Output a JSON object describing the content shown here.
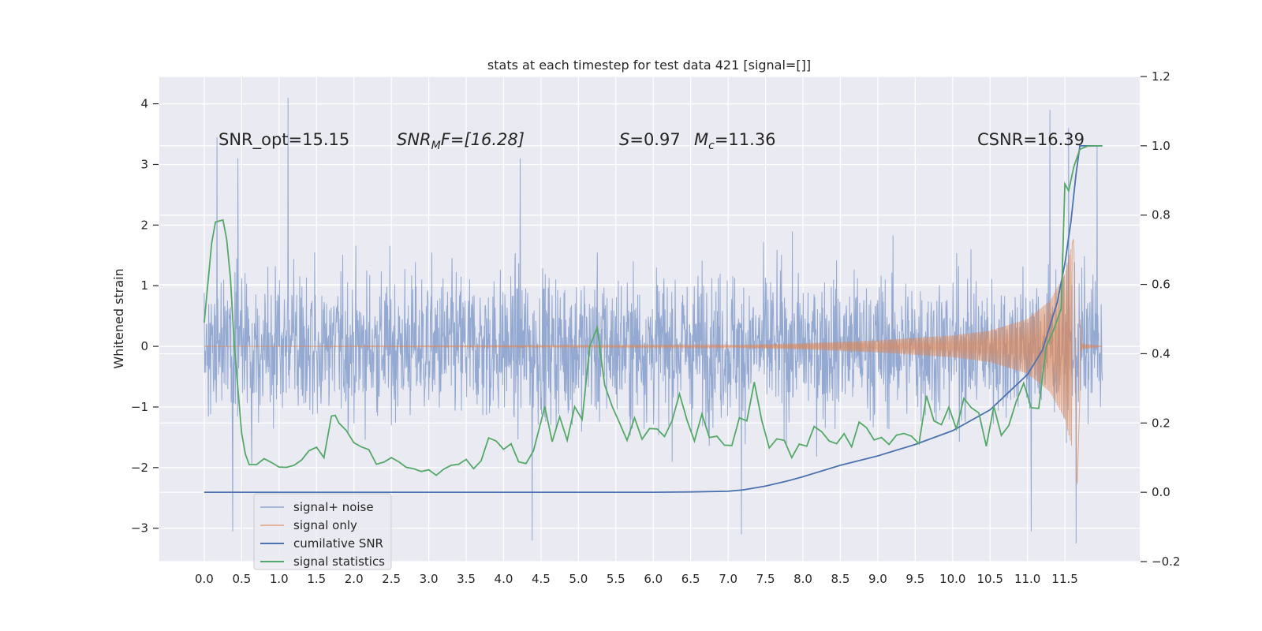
{
  "chart_data": {
    "type": "line",
    "title": "stats at each timestep for test data 421 [signal=[]]",
    "xlabel": "",
    "ylabel": "Whitened strain",
    "y2label": "",
    "xlim": [
      -0.6,
      12.5
    ],
    "ylim": [
      -3.55,
      4.45
    ],
    "y2lim": [
      -0.2,
      1.2
    ],
    "x_ticks": [
      0.0,
      0.5,
      1.0,
      1.5,
      2.0,
      2.5,
      3.0,
      3.5,
      4.0,
      4.5,
      5.0,
      5.5,
      6.0,
      6.5,
      7.0,
      7.5,
      8.0,
      8.5,
      9.0,
      9.5,
      10.0,
      10.5,
      11.0,
      11.5
    ],
    "x_tick_labels": [
      "0.0",
      "0.5",
      "1.0",
      "1.5",
      "2.0",
      "2.5",
      "3.0",
      "3.5",
      "4.0",
      "4.5",
      "5.0",
      "5.5",
      "6.0",
      "6.5",
      "7.0",
      "7.5",
      "8.0",
      "8.5",
      "9.0",
      "9.5",
      "10.0",
      "10.5",
      "11.0",
      "11.5"
    ],
    "y_ticks": [
      4,
      3,
      2,
      1,
      0,
      -1,
      -2,
      -3
    ],
    "y_tick_labels": [
      "4",
      "3",
      "2",
      "1",
      "0",
      "−1",
      "−2",
      "−3"
    ],
    "y2_ticks": [
      1.2,
      1.0,
      0.8,
      0.6,
      0.4,
      0.2,
      0.0,
      -0.2
    ],
    "y2_tick_labels": [
      "1.2",
      "1.0",
      "0.8",
      "0.6",
      "0.4",
      "0.2",
      "0.0",
      "−0.2"
    ],
    "grid": true,
    "legend_position": "lower-left",
    "annotations": {
      "snr_opt": "SNR_opt=15.15",
      "snr_mf_main": "SNR",
      "snr_mf_sub": "M",
      "snr_mf_rest": "F=[16.28]",
      "s_main": "S",
      "s_rest": "=0.97",
      "mc_main": "M",
      "mc_sub": "c",
      "mc_rest": "=11.36",
      "csnr": "CSNR=16.39"
    },
    "series": [
      {
        "name": "signal+ noise",
        "axis": "left",
        "color": "#8fa5cf",
        "style": "dense-noise",
        "x_range": [
          0.0,
          12.0
        ],
        "envelope": [
          -2.0,
          2.0
        ],
        "peaks": [
          [
            0.17,
            3.45
          ],
          [
            0.45,
            3.1
          ],
          [
            1.12,
            4.1
          ],
          [
            4.22,
            3.1
          ],
          [
            11.3,
            3.9
          ],
          [
            11.55,
            3.6
          ],
          [
            11.93,
            3.3
          ],
          [
            0.38,
            -3.05
          ],
          [
            4.38,
            -3.2
          ],
          [
            7.18,
            -3.1
          ],
          [
            11.05,
            -3.05
          ],
          [
            11.65,
            -3.25
          ]
        ]
      },
      {
        "name": "signal only",
        "axis": "left",
        "color": "#dd8452",
        "style": "chirp",
        "x_range": [
          0.0,
          12.0
        ],
        "points": [
          [
            0.0,
            0.0
          ],
          [
            7.0,
            0.02
          ],
          [
            8.0,
            0.05
          ],
          [
            9.0,
            0.1
          ],
          [
            10.0,
            0.18
          ],
          [
            10.5,
            0.26
          ],
          [
            11.0,
            0.45
          ],
          [
            11.3,
            0.75
          ],
          [
            11.5,
            1.2
          ],
          [
            11.62,
            1.8
          ],
          [
            11.66,
            -2.5
          ],
          [
            11.72,
            0.05
          ],
          [
            12.0,
            0.0
          ]
        ]
      },
      {
        "name": "cumilative SNR",
        "axis": "right",
        "color": "#4c72b0",
        "points": [
          [
            0.0,
            0.0
          ],
          [
            5.0,
            0.0
          ],
          [
            6.0,
            0.0
          ],
          [
            6.5,
            0.001
          ],
          [
            7.0,
            0.003
          ],
          [
            7.2,
            0.007
          ],
          [
            7.5,
            0.018
          ],
          [
            7.8,
            0.033
          ],
          [
            8.0,
            0.045
          ],
          [
            8.5,
            0.078
          ],
          [
            9.0,
            0.105
          ],
          [
            9.5,
            0.138
          ],
          [
            10.0,
            0.178
          ],
          [
            10.5,
            0.238
          ],
          [
            11.0,
            0.34
          ],
          [
            11.2,
            0.41
          ],
          [
            11.4,
            0.55
          ],
          [
            11.5,
            0.66
          ],
          [
            11.58,
            0.78
          ],
          [
            11.65,
            0.92
          ],
          [
            11.7,
            1.0
          ],
          [
            12.0,
            1.0
          ]
        ]
      },
      {
        "name": "signal statistics",
        "axis": "right",
        "color": "#55a868",
        "points": [
          [
            0.0,
            0.49
          ],
          [
            0.1,
            0.72
          ],
          [
            0.15,
            0.78
          ],
          [
            0.25,
            0.786
          ],
          [
            0.3,
            0.73
          ],
          [
            0.35,
            0.62
          ],
          [
            0.4,
            0.43
          ],
          [
            0.45,
            0.3
          ],
          [
            0.5,
            0.17
          ],
          [
            0.55,
            0.11
          ],
          [
            0.6,
            0.08
          ],
          [
            0.7,
            0.08
          ],
          [
            0.8,
            0.097
          ],
          [
            0.9,
            0.086
          ],
          [
            1.0,
            0.073
          ],
          [
            1.1,
            0.072
          ],
          [
            1.2,
            0.078
          ],
          [
            1.3,
            0.093
          ],
          [
            1.4,
            0.12
          ],
          [
            1.5,
            0.13
          ],
          [
            1.6,
            0.1
          ],
          [
            1.7,
            0.22
          ],
          [
            1.75,
            0.222
          ],
          [
            1.8,
            0.2
          ],
          [
            1.9,
            0.178
          ],
          [
            2.0,
            0.143
          ],
          [
            2.1,
            0.131
          ],
          [
            2.2,
            0.123
          ],
          [
            2.3,
            0.081
          ],
          [
            2.4,
            0.087
          ],
          [
            2.5,
            0.1
          ],
          [
            2.6,
            0.088
          ],
          [
            2.7,
            0.072
          ],
          [
            2.8,
            0.068
          ],
          [
            2.9,
            0.06
          ],
          [
            3.0,
            0.065
          ],
          [
            3.1,
            0.049
          ],
          [
            3.2,
            0.067
          ],
          [
            3.3,
            0.078
          ],
          [
            3.4,
            0.081
          ],
          [
            3.5,
            0.095
          ],
          [
            3.6,
            0.068
          ],
          [
            3.7,
            0.091
          ],
          [
            3.8,
            0.157
          ],
          [
            3.9,
            0.148
          ],
          [
            4.0,
            0.124
          ],
          [
            4.1,
            0.14
          ],
          [
            4.2,
            0.088
          ],
          [
            4.3,
            0.083
          ],
          [
            4.4,
            0.12
          ],
          [
            4.55,
            0.247
          ],
          [
            4.65,
            0.146
          ],
          [
            4.75,
            0.218
          ],
          [
            4.85,
            0.15
          ],
          [
            4.95,
            0.247
          ],
          [
            5.05,
            0.21
          ],
          [
            5.15,
            0.42
          ],
          [
            5.25,
            0.475
          ],
          [
            5.35,
            0.31
          ],
          [
            5.45,
            0.248
          ],
          [
            5.55,
            0.2
          ],
          [
            5.65,
            0.15
          ],
          [
            5.75,
            0.215
          ],
          [
            5.85,
            0.153
          ],
          [
            5.95,
            0.184
          ],
          [
            6.05,
            0.183
          ],
          [
            6.15,
            0.161
          ],
          [
            6.25,
            0.206
          ],
          [
            6.35,
            0.284
          ],
          [
            6.45,
            0.209
          ],
          [
            6.55,
            0.148
          ],
          [
            6.65,
            0.226
          ],
          [
            6.75,
            0.158
          ],
          [
            6.85,
            0.162
          ],
          [
            6.95,
            0.136
          ],
          [
            7.05,
            0.135
          ],
          [
            7.15,
            0.215
          ],
          [
            7.25,
            0.206
          ],
          [
            7.35,
            0.318
          ],
          [
            7.45,
            0.207
          ],
          [
            7.55,
            0.128
          ],
          [
            7.65,
            0.154
          ],
          [
            7.75,
            0.15
          ],
          [
            7.85,
            0.1
          ],
          [
            7.95,
            0.139
          ],
          [
            8.05,
            0.133
          ],
          [
            8.15,
            0.19
          ],
          [
            8.25,
            0.175
          ],
          [
            8.35,
            0.148
          ],
          [
            8.45,
            0.14
          ],
          [
            8.55,
            0.169
          ],
          [
            8.65,
            0.131
          ],
          [
            8.75,
            0.203
          ],
          [
            8.85,
            0.186
          ],
          [
            8.95,
            0.151
          ],
          [
            9.05,
            0.158
          ],
          [
            9.15,
            0.138
          ],
          [
            9.25,
            0.165
          ],
          [
            9.35,
            0.17
          ],
          [
            9.45,
            0.162
          ],
          [
            9.55,
            0.14
          ],
          [
            9.65,
            0.279
          ],
          [
            9.75,
            0.206
          ],
          [
            9.85,
            0.195
          ],
          [
            9.95,
            0.246
          ],
          [
            10.05,
            0.183
          ],
          [
            10.15,
            0.271
          ],
          [
            10.25,
            0.244
          ],
          [
            10.35,
            0.229
          ],
          [
            10.45,
            0.133
          ],
          [
            10.55,
            0.248
          ],
          [
            10.65,
            0.164
          ],
          [
            10.75,
            0.193
          ],
          [
            10.85,
            0.262
          ],
          [
            10.95,
            0.315
          ],
          [
            11.05,
            0.244
          ],
          [
            11.15,
            0.242
          ],
          [
            11.25,
            0.42
          ],
          [
            11.35,
            0.469
          ],
          [
            11.45,
            0.53
          ],
          [
            11.5,
            0.89
          ],
          [
            11.55,
            0.87
          ],
          [
            11.62,
            0.94
          ],
          [
            11.7,
            0.99
          ],
          [
            11.8,
            0.999
          ],
          [
            11.9,
            1.0
          ],
          [
            12.0,
            1.0
          ]
        ]
      }
    ]
  }
}
